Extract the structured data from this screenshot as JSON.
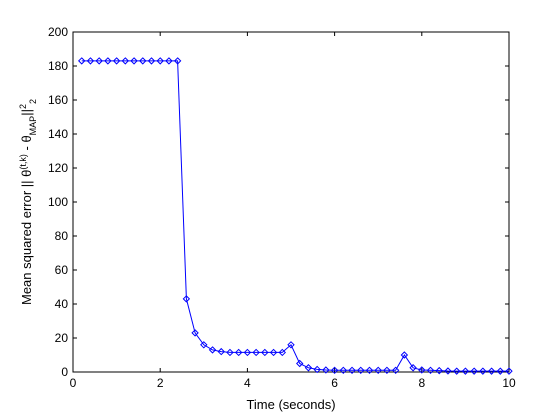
{
  "chart_data": {
    "type": "line",
    "title": "",
    "xlabel": "Time (seconds)",
    "ylabel": {
      "main": "Mean squared error || θ",
      "sup1": "(t,k)",
      "mid": " - θ",
      "sub": "MAP",
      "tail": "||",
      "sup2": "2",
      "sub2": "2"
    },
    "xlim": [
      0,
      10
    ],
    "ylim": [
      0,
      200
    ],
    "xticks": [
      0,
      2,
      4,
      6,
      8,
      10
    ],
    "yticks": [
      0,
      20,
      40,
      60,
      80,
      100,
      120,
      140,
      160,
      180,
      200
    ],
    "grid": false,
    "series_color": "#0000ff",
    "marker": "diamond",
    "series": [
      {
        "x": [
          0.2,
          0.4,
          0.6,
          0.8,
          1.0,
          1.2,
          1.4,
          1.6,
          1.8,
          2.0,
          2.2,
          2.4,
          2.6,
          2.8,
          3.0,
          3.2,
          3.4,
          3.6,
          3.8,
          4.0,
          4.2,
          4.4,
          4.6,
          4.8,
          5.0,
          5.2,
          5.4,
          5.6,
          5.8,
          6.0,
          6.2,
          6.4,
          6.6,
          6.8,
          7.0,
          7.2,
          7.4,
          7.6,
          7.8,
          8.0,
          8.2,
          8.4,
          8.6,
          8.8,
          9.0,
          9.2,
          9.4,
          9.6,
          9.8,
          10.0
        ],
        "y": [
          183,
          183,
          183,
          183,
          183,
          183,
          183,
          183,
          183,
          183,
          183,
          183,
          43,
          23,
          16,
          13,
          12,
          11.5,
          11.5,
          11.5,
          11.5,
          11.5,
          11.5,
          11.5,
          16,
          5,
          2.5,
          1.5,
          1.2,
          1,
          1,
          1,
          1,
          1,
          1,
          1,
          1,
          10,
          2.5,
          1.2,
          1,
          0.8,
          0.6,
          0.5,
          0.5,
          0.5,
          0.5,
          0.5,
          0.5,
          0.5
        ]
      }
    ]
  }
}
